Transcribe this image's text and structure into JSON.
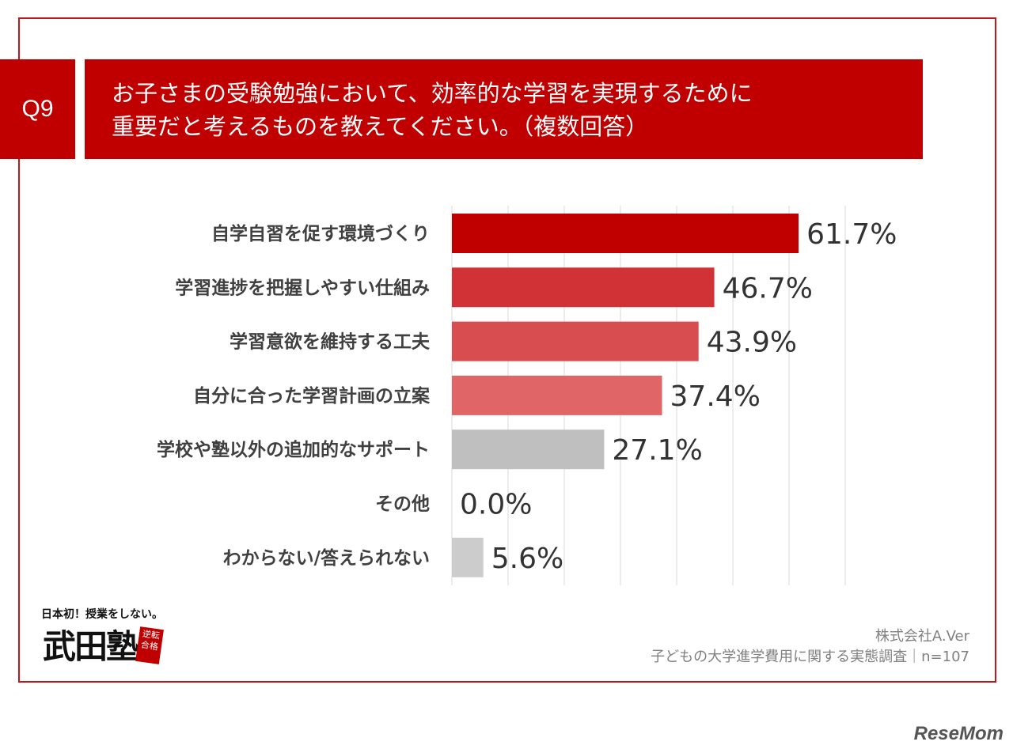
{
  "header": {
    "question_no": "Q9",
    "title_lines": [
      "お子さまの受験勉強において、効率的な学習を実現するために",
      "重要だと考えるものを教えてください。（複数回答）"
    ]
  },
  "chart_data": {
    "type": "bar",
    "orientation": "horizontal",
    "categories": [
      "自学自習を促す環境づくり",
      "学習進捗を把握しやすい仕組み",
      "学習意欲を維持する工夫",
      "自分に合った学習計画の立案",
      "学校や塾以外の追加的なサポート",
      "その他",
      "わからない/答えられない"
    ],
    "values": [
      61.7,
      46.7,
      43.9,
      37.4,
      27.1,
      0.0,
      5.6
    ],
    "value_labels": [
      "61.7%",
      "46.7%",
      "43.9%",
      "37.4%",
      "27.1%",
      "0.0%",
      "5.6%"
    ],
    "colors": [
      "#c00000",
      "#d03236",
      "#d84d50",
      "#e06567",
      "#bfbfbf",
      "#bfbfbf",
      "#cccccc"
    ],
    "xlim": [
      0,
      70
    ],
    "grid": true
  },
  "logo": {
    "tagline": "日本初！授業をしない。",
    "name": "武田塾",
    "stamp": "逆転合格"
  },
  "source": {
    "company": "株式会社A.Ver",
    "survey": "子どもの大学進学費用に関する実態調査｜n=107"
  },
  "watermark": "ReseMom"
}
